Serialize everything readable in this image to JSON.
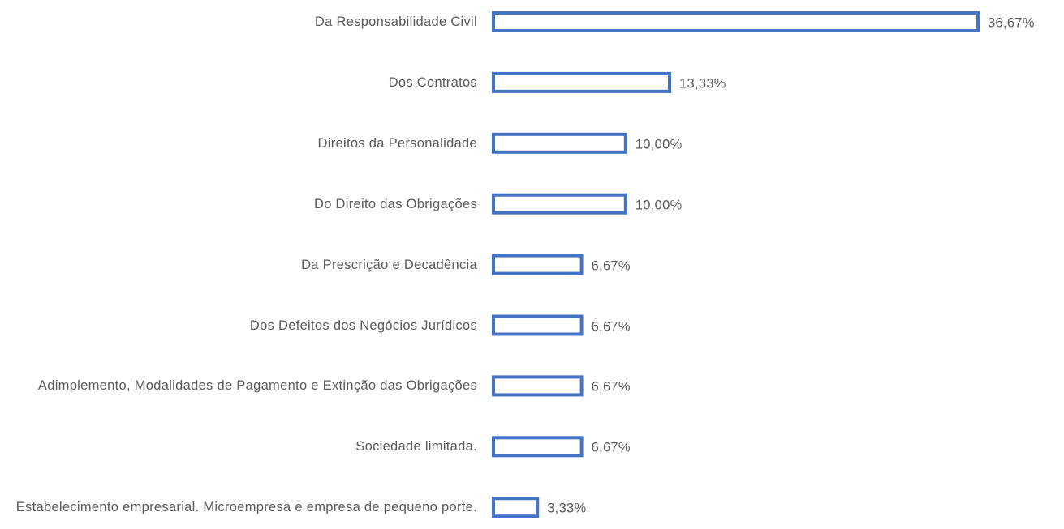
{
  "chart_data": {
    "type": "bar",
    "orientation": "horizontal",
    "color": "#4472c4",
    "categories": [
      "Da Responsabilidade Civil",
      "Dos Contratos",
      "Direitos da Personalidade",
      "Do Direito das Obrigações",
      "Da Prescrição e Decadência",
      "Dos Defeitos dos Negócios Jurídicos",
      "Adimplemento, Modalidades de Pagamento e Extinção das Obrigações",
      "Sociedade limitada.",
      "Estabelecimento empresarial. Microempresa e empresa de pequeno porte."
    ],
    "values": [
      36.67,
      13.33,
      10.0,
      10.0,
      6.67,
      6.67,
      6.67,
      6.67,
      3.33
    ],
    "value_labels": [
      "36,67%",
      "13,33%",
      "10,00%",
      "10,00%",
      "6,67%",
      "6,67%",
      "6,67%",
      "6,67%",
      "3,33%"
    ]
  }
}
